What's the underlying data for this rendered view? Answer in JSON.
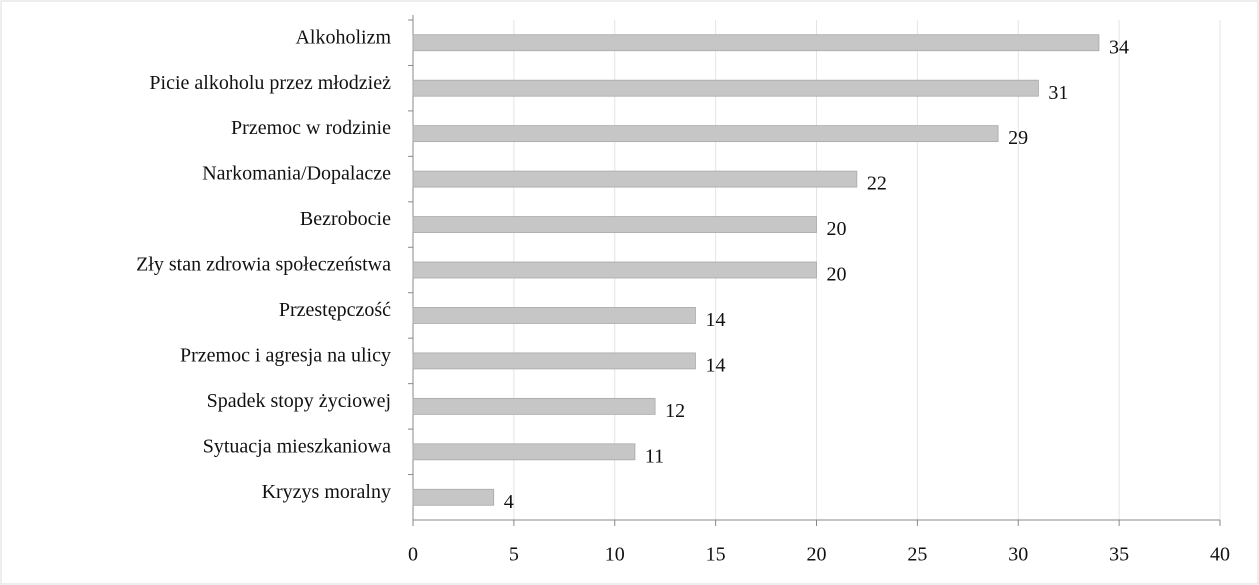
{
  "chart_data": {
    "type": "bar",
    "orientation": "horizontal",
    "categories": [
      "Alkoholizm",
      "Picie alkoholu przez młodzież",
      "Przemoc w rodzinie",
      "Narkomania/Dopalacze",
      "Bezrobocie",
      "Zły stan zdrowia społeczeństwa",
      "Przestępczość",
      "Przemoc i agresja na ulicy",
      "Spadek stopy życiowej",
      "Sytuacja mieszkaniowa",
      "Kryzys moralny"
    ],
    "values": [
      34,
      31,
      29,
      22,
      20,
      20,
      14,
      14,
      12,
      11,
      4
    ],
    "color": "#c6c6c6",
    "xlim": [
      0,
      40
    ],
    "xticks": [
      0,
      5,
      10,
      15,
      20,
      25,
      30,
      35,
      40
    ],
    "grid": true
  }
}
